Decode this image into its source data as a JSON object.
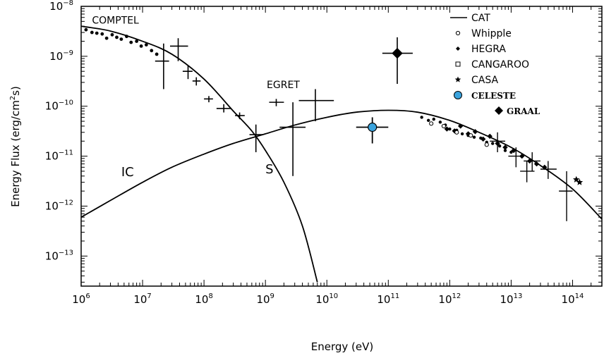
{
  "chart_data": {
    "type": "scatter",
    "xscale": "log",
    "yscale": "log",
    "xlim": [
      1000000.0,
      300000000000000.0
    ],
    "ylim": [
      2.5e-14,
      1e-08
    ],
    "xlabel": "Energy (eV)",
    "ylabel_main": "Energy Flux (erg/cm",
    "ylabel_sup": "2",
    "ylabel_end": "s)",
    "xtick_exps": [
      6,
      7,
      8,
      9,
      10,
      11,
      12,
      13,
      14
    ],
    "ytick_exps": [
      -8,
      -9,
      -10,
      -11,
      -12,
      -13
    ],
    "tick_base": "10",
    "annotations": [
      {
        "text": "COMPTEL",
        "x": 1500000.0,
        "y": 4.5e-09,
        "size": 14
      },
      {
        "text": "EGRET",
        "x": 1050000000.0,
        "y": 2.3e-10,
        "size": 14
      },
      {
        "text": "IC",
        "x": 4500000.0,
        "y": 4e-12,
        "size": 18
      },
      {
        "text": "S",
        "x": 1000000000.0,
        "y": 4.5e-12,
        "size": 18
      }
    ],
    "legend": [
      {
        "label": "CAT",
        "marker": "line"
      },
      {
        "label": "Whipple",
        "marker": "open-circle"
      },
      {
        "label": "HEGRA",
        "marker": "diamond-small"
      },
      {
        "label": "CANGAROO",
        "marker": "open-square"
      },
      {
        "label": "CASA",
        "marker": "star"
      },
      {
        "label": "CELESTE",
        "marker": "blue-circle"
      },
      {
        "label": "GRAAL",
        "marker": "diamond-filled"
      }
    ],
    "series": [
      {
        "name": "S",
        "x": [
          1000000.0,
          3000000.0,
          10000000.0,
          30000000.0,
          100000000.0,
          300000000.0,
          600000000.0,
          1000000000.0,
          2000000000.0,
          4000000000.0,
          7000000000.0
        ],
        "y": [
          4e-09,
          3.2e-09,
          2e-09,
          1.1e-09,
          3.5e-10,
          8e-11,
          3.2e-11,
          1.3e-11,
          3e-12,
          4e-13,
          3e-14
        ]
      },
      {
        "name": "IC",
        "x": [
          1000000.0,
          3000000.0,
          10000000.0,
          30000000.0,
          100000000.0,
          300000000.0,
          1000000000.0,
          3000000000.0,
          10000000000.0,
          30000000000.0,
          100000000000.0,
          300000000000.0,
          1000000000000.0,
          3000000000000.0,
          10000000000000.0,
          30000000000000.0,
          100000000000000.0,
          300000000000000.0
        ],
        "y": [
          6e-13,
          1.3e-12,
          3e-12,
          6e-12,
          1.1e-11,
          1.8e-11,
          2.8e-11,
          4.2e-11,
          6e-11,
          7.6e-11,
          8.3e-11,
          7.6e-11,
          5.2e-11,
          3e-11,
          1.5e-11,
          6.5e-12,
          2.2e-12,
          5.5e-13
        ]
      },
      {
        "name": "COMPTEL",
        "x": [
          1200000.0,
          1500000.0,
          1800000.0,
          2200000.0,
          2600000.0,
          3200000.0,
          3800000.0,
          4500000.0,
          5500000.0,
          6500000.0,
          8000000.0,
          9500000.0,
          11500000.0,
          14000000.0,
          17000000.0
        ],
        "y": [
          3.4e-09,
          3e-09,
          2.9e-09,
          2.8e-09,
          2.3e-09,
          2.7e-09,
          2.4e-09,
          2.2e-09,
          2.5e-09,
          1.9e-09,
          2e-09,
          1.6e-09,
          1.7e-09,
          1.3e-09,
          1.1e-09
        ]
      },
      {
        "name": "EGRET",
        "x": [
          22000000.0,
          38000000.0,
          55000000.0,
          75000000.0,
          120000000.0,
          210000000.0,
          380000000.0,
          700000000.0,
          1500000000.0,
          2800000000.0,
          6500000000.0
        ],
        "y": [
          8e-10,
          1.6e-09,
          5e-10,
          3.2e-10,
          1.4e-10,
          9e-11,
          6.5e-11,
          2.7e-11,
          1.2e-10,
          3.8e-11,
          1.3e-10
        ],
        "ylo": [
          2.2e-10,
          8e-10,
          3.5e-10,
          2.6e-10,
          1.2e-10,
          7.5e-11,
          5.5e-11,
          1.2e-11,
          1e-10,
          4e-12,
          5e-11
        ],
        "yhi": [
          1.8e-09,
          2.3e-09,
          6.5e-10,
          3.8e-10,
          1.6e-10,
          1.1e-10,
          7.5e-11,
          4.3e-11,
          1.4e-10,
          1.2e-10,
          2.2e-10
        ],
        "xlo": [
          16000000.0,
          28000000.0,
          45000000.0,
          65000000.0,
          100000000.0,
          160000000.0,
          320000000.0,
          550000000.0,
          1150000000.0,
          1700000000.0,
          3500000000.0
        ],
        "xhi": [
          27000000.0,
          55000000.0,
          65000000.0,
          88000000.0,
          140000000.0,
          280000000.0,
          460000000.0,
          900000000.0,
          2000000000.0,
          4500000000.0,
          13000000000.0
        ]
      },
      {
        "name": "CELESTE",
        "x": [
          55000000000.0
        ],
        "y": [
          3.8e-11
        ],
        "ylo": [
          1.8e-11
        ],
        "yhi": [
          6e-11
        ],
        "xlo": [
          30000000000.0
        ],
        "xhi": [
          100000000000.0
        ]
      },
      {
        "name": "GRAAL",
        "x": [
          140000000000.0
        ],
        "y": [
          1.15e-09
        ],
        "ylo": [
          2.8e-10
        ],
        "yhi": [
          2.4e-09
        ],
        "xlo": [
          80000000000.0
        ],
        "xhi": [
          250000000000.0
        ]
      },
      {
        "name": "CAT",
        "x": [
          350000000000.0,
          450000000000.0,
          550000000000.0,
          700000000000.0,
          850000000000.0,
          1000000000000.0,
          1300000000000.0,
          1600000000000.0,
          2000000000000.0,
          2500000000000.0,
          3200000000000.0,
          4000000000000.0,
          5000000000000.0,
          6500000000000.0,
          8000000000000.0,
          10000000000000.0
        ],
        "y": [
          6e-11,
          5.2e-11,
          5.5e-11,
          4.8e-11,
          4.2e-11,
          3.5e-11,
          3.3e-11,
          2.8e-11,
          2.6e-11,
          2.4e-11,
          2.3e-11,
          1.9e-11,
          1.8e-11,
          1.6e-11,
          1.3e-11,
          1.2e-11
        ]
      },
      {
        "name": "HEGRA",
        "x": [
          900000000000.0,
          1200000000000.0,
          1500000000000.0,
          2000000000000.0,
          2600000000000.0,
          3500000000000.0,
          4500000000000.0,
          6000000000000.0,
          8000000000000.0,
          11000000000000.0,
          15000000000000.0,
          20000000000000.0,
          26000000000000.0,
          35000000000000.0
        ],
        "y": [
          3.5e-11,
          3.2e-11,
          4e-11,
          2.8e-11,
          3.1e-11,
          2.2e-11,
          2.5e-11,
          1.8e-11,
          1.5e-11,
          1.3e-11,
          1e-11,
          8e-12,
          7e-12,
          6e-12
        ]
      },
      {
        "name": "Whipple",
        "x": [
          500000000000.0,
          800000000000.0,
          1300000000000.0,
          2200000000000.0,
          4000000000000.0
        ],
        "y": [
          4.5e-11,
          4e-11,
          3e-11,
          2.6e-11,
          1.7e-11
        ]
      },
      {
        "name": "CASA",
        "x": [
          115000000000000.0,
          130000000000000.0
        ],
        "y": [
          3.4e-12,
          3e-12
        ]
      },
      {
        "name": "HE-err",
        "x": [
          6000000000000.0,
          12000000000000.0,
          18000000000000.0,
          22000000000000.0,
          40000000000000.0,
          80000000000000.0
        ],
        "y": [
          2e-11,
          1e-11,
          5e-12,
          8e-12,
          5.5e-12,
          2e-12
        ],
        "ylo": [
          1.2e-11,
          6e-12,
          3e-12,
          5e-12,
          3.5e-12,
          5e-13
        ],
        "yhi": [
          3e-11,
          1.5e-11,
          8e-12,
          1.2e-11,
          8e-12,
          5e-12
        ],
        "xlo": [
          4500000000000.0,
          9000000000000.0,
          14000000000000.0,
          16000000000000.0,
          30000000000000.0,
          60000000000000.0
        ],
        "xhi": [
          8000000000000.0,
          16000000000000.0,
          24000000000000.0,
          30000000000000.0,
          55000000000000.0,
          100000000000000.0
        ]
      }
    ]
  }
}
